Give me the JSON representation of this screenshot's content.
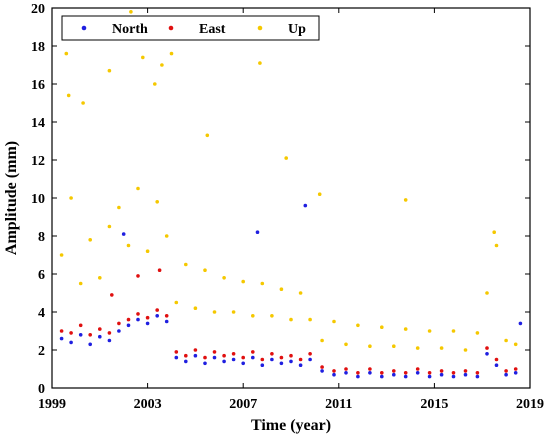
{
  "chart_data": {
    "type": "scatter",
    "title": "",
    "xlabel": "Time (year)",
    "ylabel": "Amplitude (mm)",
    "xlim": [
      1999,
      2019
    ],
    "ylim": [
      0,
      20
    ],
    "xticks": [
      1999,
      2003,
      2007,
      2011,
      2015,
      2019
    ],
    "yticks": [
      0,
      2,
      4,
      6,
      8,
      10,
      12,
      14,
      16,
      18,
      20
    ],
    "grid": false,
    "legend": {
      "position": "top-left",
      "orientation": "horizontal"
    },
    "series": [
      {
        "name": "North",
        "color": "#1f1fe0",
        "points": [
          [
            1999.4,
            2.6
          ],
          [
            1999.8,
            2.4
          ],
          [
            2000.2,
            2.8
          ],
          [
            2000.6,
            2.3
          ],
          [
            2001.0,
            2.7
          ],
          [
            2001.4,
            2.5
          ],
          [
            2001.8,
            3.0
          ],
          [
            2002.2,
            3.3
          ],
          [
            2002.6,
            3.6
          ],
          [
            2003.0,
            3.4
          ],
          [
            2003.4,
            3.8
          ],
          [
            2003.8,
            3.5
          ],
          [
            2004.2,
            1.6
          ],
          [
            2004.6,
            1.4
          ],
          [
            2005.0,
            1.7
          ],
          [
            2005.4,
            1.3
          ],
          [
            2005.8,
            1.6
          ],
          [
            2006.2,
            1.4
          ],
          [
            2006.6,
            1.5
          ],
          [
            2007.0,
            1.3
          ],
          [
            2007.4,
            1.6
          ],
          [
            2007.8,
            1.2
          ],
          [
            2008.2,
            1.5
          ],
          [
            2008.6,
            1.3
          ],
          [
            2009.0,
            1.4
          ],
          [
            2009.4,
            1.2
          ],
          [
            2009.8,
            1.5
          ],
          [
            2010.3,
            0.9
          ],
          [
            2010.8,
            0.7
          ],
          [
            2011.3,
            0.8
          ],
          [
            2011.8,
            0.6
          ],
          [
            2012.3,
            0.8
          ],
          [
            2012.8,
            0.6
          ],
          [
            2013.3,
            0.7
          ],
          [
            2013.8,
            0.6
          ],
          [
            2014.3,
            0.8
          ],
          [
            2014.8,
            0.6
          ],
          [
            2015.3,
            0.7
          ],
          [
            2015.8,
            0.6
          ],
          [
            2016.3,
            0.7
          ],
          [
            2016.8,
            0.6
          ],
          [
            2017.2,
            1.8
          ],
          [
            2017.6,
            1.2
          ],
          [
            2018.0,
            0.7
          ],
          [
            2018.4,
            0.8
          ],
          [
            2018.6,
            3.4
          ],
          [
            2009.6,
            9.6
          ],
          [
            2007.6,
            8.2
          ],
          [
            2002.0,
            8.1
          ]
        ]
      },
      {
        "name": "East",
        "color": "#e01010",
        "points": [
          [
            1999.4,
            3.0
          ],
          [
            1999.8,
            2.9
          ],
          [
            2000.2,
            3.3
          ],
          [
            2000.6,
            2.8
          ],
          [
            2001.0,
            3.1
          ],
          [
            2001.4,
            2.9
          ],
          [
            2001.8,
            3.4
          ],
          [
            2002.2,
            3.6
          ],
          [
            2002.6,
            3.9
          ],
          [
            2003.0,
            3.7
          ],
          [
            2003.4,
            4.1
          ],
          [
            2003.8,
            3.8
          ],
          [
            2004.2,
            1.9
          ],
          [
            2004.6,
            1.7
          ],
          [
            2005.0,
            2.0
          ],
          [
            2005.4,
            1.6
          ],
          [
            2005.8,
            1.9
          ],
          [
            2006.2,
            1.7
          ],
          [
            2006.6,
            1.8
          ],
          [
            2007.0,
            1.6
          ],
          [
            2007.4,
            1.9
          ],
          [
            2007.8,
            1.5
          ],
          [
            2008.2,
            1.8
          ],
          [
            2008.6,
            1.6
          ],
          [
            2009.0,
            1.7
          ],
          [
            2009.4,
            1.5
          ],
          [
            2009.8,
            1.8
          ],
          [
            2010.3,
            1.1
          ],
          [
            2010.8,
            0.9
          ],
          [
            2011.3,
            1.0
          ],
          [
            2011.8,
            0.8
          ],
          [
            2012.3,
            1.0
          ],
          [
            2012.8,
            0.8
          ],
          [
            2013.3,
            0.9
          ],
          [
            2013.8,
            0.8
          ],
          [
            2014.3,
            1.0
          ],
          [
            2014.8,
            0.8
          ],
          [
            2015.3,
            0.9
          ],
          [
            2015.8,
            0.8
          ],
          [
            2016.3,
            0.9
          ],
          [
            2016.8,
            0.8
          ],
          [
            2017.2,
            2.1
          ],
          [
            2017.6,
            1.5
          ],
          [
            2018.0,
            0.9
          ],
          [
            2018.4,
            1.0
          ],
          [
            2002.6,
            5.9
          ],
          [
            2003.5,
            6.2
          ],
          [
            2001.5,
            4.9
          ]
        ]
      },
      {
        "name": "Up",
        "color": "#f5c800",
        "points": [
          [
            1999.4,
            7.0
          ],
          [
            1999.8,
            10.0
          ],
          [
            2000.2,
            5.5
          ],
          [
            2000.6,
            7.8
          ],
          [
            2001.0,
            5.8
          ],
          [
            2001.4,
            8.5
          ],
          [
            2001.8,
            9.5
          ],
          [
            2002.2,
            7.5
          ],
          [
            2002.6,
            10.5
          ],
          [
            2003.0,
            7.2
          ],
          [
            2003.4,
            9.8
          ],
          [
            2003.8,
            8.0
          ],
          [
            2004.2,
            4.5
          ],
          [
            2004.6,
            6.5
          ],
          [
            2005.0,
            4.2
          ],
          [
            2005.4,
            6.2
          ],
          [
            2005.8,
            4.0
          ],
          [
            2006.2,
            5.8
          ],
          [
            2006.6,
            4.0
          ],
          [
            2007.0,
            5.6
          ],
          [
            2007.4,
            3.8
          ],
          [
            2007.8,
            5.5
          ],
          [
            2008.2,
            3.8
          ],
          [
            2008.6,
            5.2
          ],
          [
            2009.0,
            3.6
          ],
          [
            2009.4,
            5.0
          ],
          [
            2009.8,
            3.6
          ],
          [
            2010.3,
            2.5
          ],
          [
            2010.8,
            3.5
          ],
          [
            2011.3,
            2.3
          ],
          [
            2011.8,
            3.3
          ],
          [
            2012.3,
            2.2
          ],
          [
            2012.8,
            3.2
          ],
          [
            2013.3,
            2.2
          ],
          [
            2013.8,
            3.1
          ],
          [
            2014.3,
            2.1
          ],
          [
            2014.8,
            3.0
          ],
          [
            2015.3,
            2.1
          ],
          [
            2015.8,
            3.0
          ],
          [
            2016.3,
            2.0
          ],
          [
            2016.8,
            2.9
          ],
          [
            2017.2,
            5.0
          ],
          [
            2017.6,
            7.5
          ],
          [
            2018.0,
            2.5
          ],
          [
            2018.4,
            2.3
          ],
          [
            1999.6,
            17.6
          ],
          [
            1999.7,
            15.4
          ],
          [
            2000.3,
            15.0
          ],
          [
            2001.4,
            16.7
          ],
          [
            2002.3,
            19.8
          ],
          [
            2002.8,
            17.4
          ],
          [
            2003.3,
            16.0
          ],
          [
            2003.6,
            17.0
          ],
          [
            2004.0,
            17.6
          ],
          [
            2005.5,
            13.3
          ],
          [
            2007.7,
            17.1
          ],
          [
            2008.8,
            12.1
          ],
          [
            2010.2,
            10.2
          ],
          [
            2013.8,
            9.9
          ],
          [
            2017.5,
            8.2
          ]
        ]
      }
    ]
  }
}
